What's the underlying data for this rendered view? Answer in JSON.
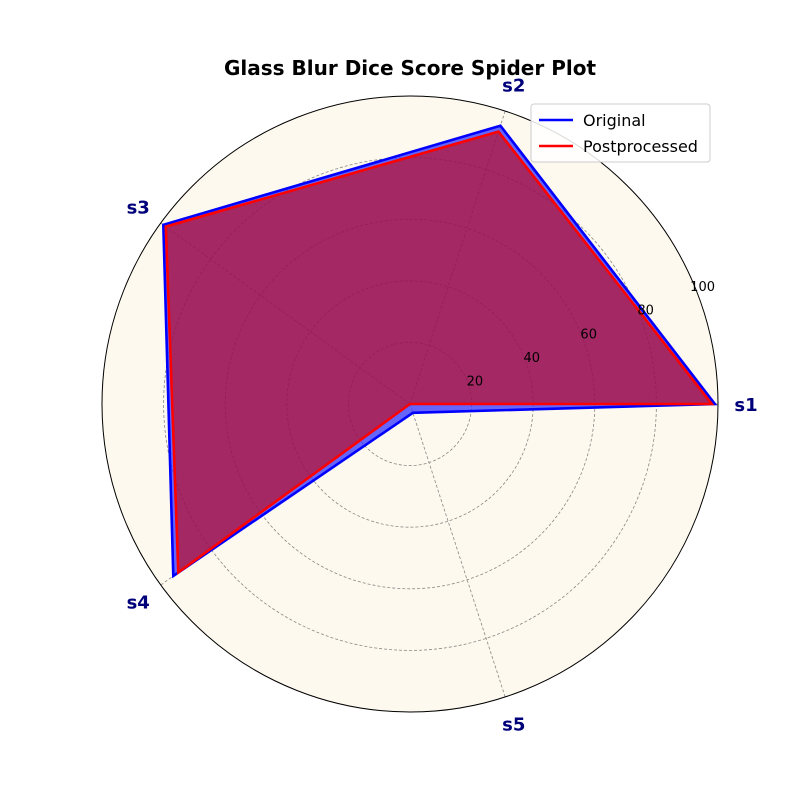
{
  "chart_data": {
    "type": "radar",
    "title": "Glass Blur Dice Score Spider Plot",
    "categories": [
      "s1",
      "s2",
      "s3",
      "s4",
      "s5"
    ],
    "rlim": [
      0,
      100
    ],
    "r_ticks": [
      "20",
      "40",
      "60",
      "80",
      "100"
    ],
    "grid": true,
    "legend_position": "top-right",
    "background_color": "#fdf9ee",
    "series": [
      {
        "name": "Original",
        "values": [
          99,
          95,
          99,
          95,
          3
        ],
        "color": "#0000ff"
      },
      {
        "name": "Postprocessed",
        "values": [
          98,
          93,
          98,
          93,
          0
        ],
        "color": "#ff0000"
      }
    ],
    "fill_colors": [
      "#3333ff",
      "#cc0000"
    ]
  }
}
